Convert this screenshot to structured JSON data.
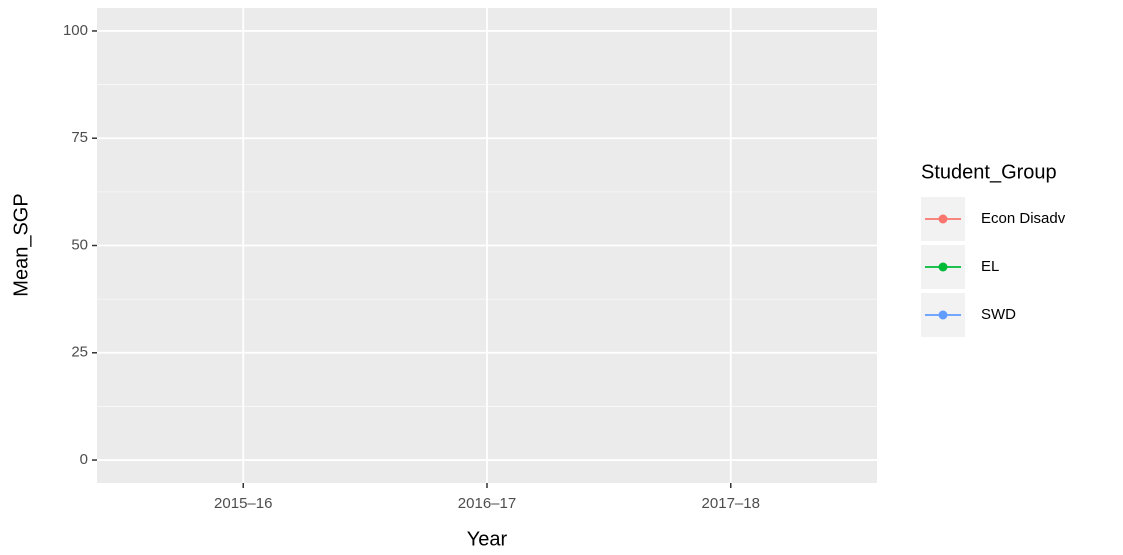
{
  "chart_data": {
    "type": "line",
    "x_label": "Year",
    "y_label": "Mean_SGP",
    "categories": [
      "2015–16",
      "2016–17",
      "2017–18"
    ],
    "series": [
      {
        "name": "Econ Disadv",
        "color": "#F8766D",
        "values": [
          null,
          null,
          null
        ]
      },
      {
        "name": "EL",
        "color": "#00BA38",
        "values": [
          null,
          null,
          null
        ]
      },
      {
        "name": "SWD",
        "color": "#619CFF",
        "values": [
          null,
          null,
          null
        ]
      }
    ],
    "ylim": [
      -5.35,
      105.35
    ],
    "yticks": [
      0,
      25,
      50,
      75,
      100
    ],
    "grid": true,
    "legend_title": "Student_Group",
    "legend_position": "right"
  }
}
